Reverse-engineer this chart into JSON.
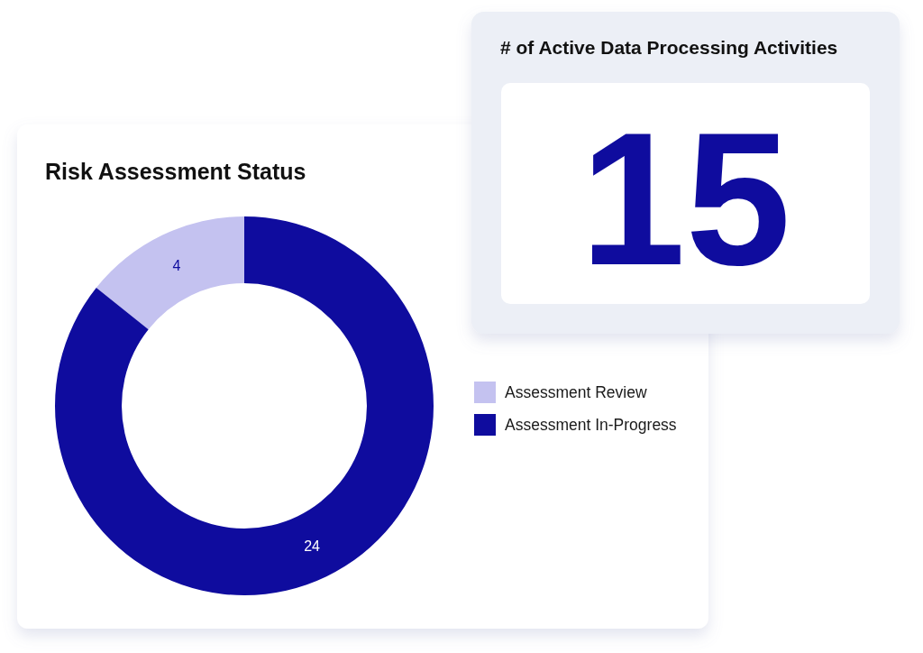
{
  "chart_data": [
    {
      "type": "donut",
      "title": "Risk Assessment Status",
      "categories": [
        "Assessment Review",
        "Assessment In-Progress"
      ],
      "values": [
        4,
        24
      ],
      "colors": [
        "#c4c2f0",
        "#0f0c9e"
      ],
      "data_labels": true,
      "legend": "right"
    },
    {
      "type": "other",
      "title": "# of Active Data Processing Activities",
      "annotations": [
        "15"
      ]
    }
  ]
}
